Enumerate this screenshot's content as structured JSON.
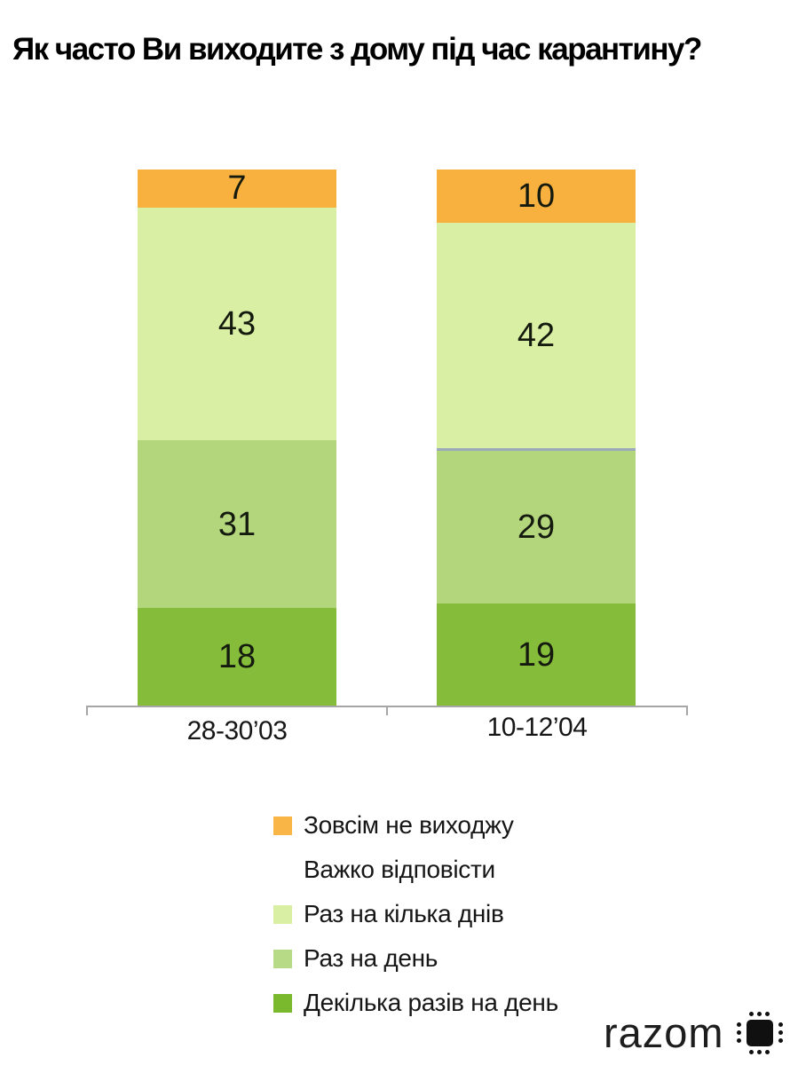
{
  "title": "Як часто Ви виходите з дому під час карантину?",
  "chart_data": {
    "type": "bar",
    "stacked": true,
    "categories": [
      "28-30’03",
      "10-12’04"
    ],
    "series": [
      {
        "name": "Зовсім не виходжу",
        "color": "#F8B13E",
        "values": [
          7,
          10
        ]
      },
      {
        "name": "Раз на кілька днів",
        "color": "#D9F0A4",
        "values": [
          43,
          42
        ]
      },
      {
        "name": "Раз на день",
        "color": "#B3D67D",
        "values": [
          31,
          29
        ]
      },
      {
        "name": "Декілька разів на день",
        "color": "#85BD3B",
        "values": [
          18,
          19
        ]
      }
    ],
    "divider": {
      "bar": 1,
      "after": 1,
      "color": "#9BAABB"
    },
    "axis_color": "#A6A6A6",
    "legend_position": "bottom",
    "value_labels": "inside"
  },
  "legend": {
    "items": [
      {
        "label": "Зовсім не виходжу",
        "swatch": "#F9B545"
      },
      {
        "label": "Важко відповісти",
        "swatch": null
      },
      {
        "label": "Раз на кілька днів",
        "swatch": "#D9F0A4"
      },
      {
        "label": "Раз на день",
        "swatch": "#B6DA85"
      },
      {
        "label": "Декілька разів на день",
        "swatch": "#7AB82E"
      }
    ]
  },
  "footer": {
    "brand": "razom"
  }
}
